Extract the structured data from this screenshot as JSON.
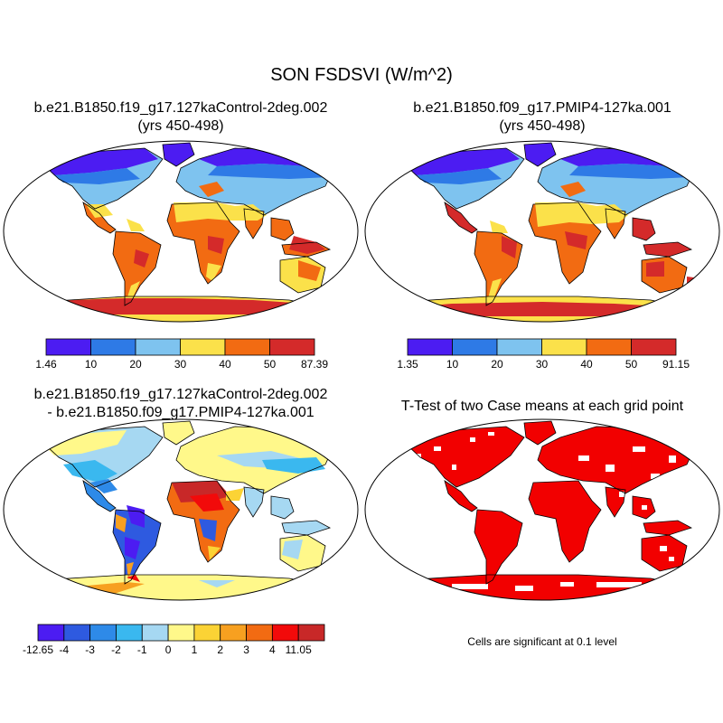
{
  "title": "SON FSDSVI (W/m^2)",
  "panels": [
    {
      "id": "control",
      "title_line1": "b.e21.B1850.f19_g17.127kaControl-2deg.002",
      "title_line2": "(yrs 450-498)"
    },
    {
      "id": "pmip4",
      "title_line1": "b.e21.B1850.f09_g17.PMIP4-127ka.001",
      "title_line2": "(yrs 450-498)"
    },
    {
      "id": "diff",
      "title_line1": "b.e21.B1850.f19_g17.127kaControl-2deg.002",
      "title_line2": "- b.e21.B1850.f09_g17.PMIP4-127ka.001"
    },
    {
      "id": "ttest",
      "title_line1": "T-Test of two Case means at each grid point",
      "title_line2": ""
    }
  ],
  "colorbars": {
    "control": {
      "labels": [
        "1.46",
        "10",
        "20",
        "30",
        "40",
        "50",
        "87.39"
      ],
      "colors": [
        "#4c1cf2",
        "#2e7ae6",
        "#7ec3ef",
        "#fbe14a",
        "#f26b12",
        "#d42a2a"
      ]
    },
    "pmip4": {
      "labels": [
        "1.35",
        "10",
        "20",
        "30",
        "40",
        "50",
        "91.15"
      ],
      "colors": [
        "#4c1cf2",
        "#2e7ae6",
        "#7ec3ef",
        "#fbe14a",
        "#f26b12",
        "#d42a2a"
      ]
    },
    "diff": {
      "labels": [
        "-12.65",
        "-4",
        "-3",
        "-2",
        "-1",
        "0",
        "1",
        "2",
        "3",
        "4",
        "11.05"
      ],
      "colors": [
        "#4c1cf2",
        "#2e5ae0",
        "#2e8ae8",
        "#3ab8ef",
        "#a6d8f2",
        "#fff88a",
        "#fbd335",
        "#f7a020",
        "#f26b12",
        "#f20a0a",
        "#c82828"
      ]
    }
  },
  "ttest_note": "Cells are significant at 0.1 level"
}
